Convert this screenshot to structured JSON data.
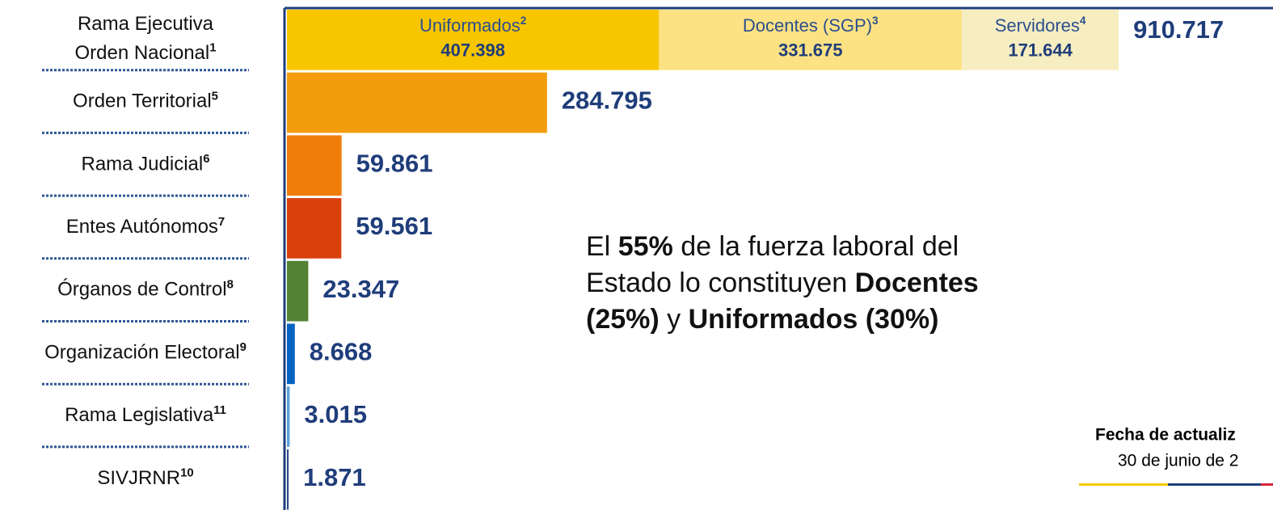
{
  "chart_data": {
    "type": "bar",
    "orientation": "horizontal",
    "categories": [
      {
        "lines": [
          "Rama Ejecutiva",
          "Orden Nacional"
        ],
        "note": "1"
      },
      {
        "lines": [
          "Orden Territorial"
        ],
        "note": "5"
      },
      {
        "lines": [
          "Rama Judicial"
        ],
        "note": "6"
      },
      {
        "lines": [
          "Entes Autónomos"
        ],
        "note": "7"
      },
      {
        "lines": [
          "Órganos de Control"
        ],
        "note": "8"
      },
      {
        "lines": [
          "Organización Electoral"
        ],
        "note": "9"
      },
      {
        "lines": [
          "Rama Legislativa"
        ],
        "note": "11"
      },
      {
        "lines": [
          "SIVJRNR"
        ],
        "note": "10"
      }
    ],
    "values": [
      910717,
      284795,
      59861,
      59561,
      23347,
      8668,
      3015,
      1871
    ],
    "value_labels": [
      "910.717",
      "284.795",
      "59.861",
      "59.561",
      "23.347",
      "8.668",
      "3.015",
      "1.871"
    ],
    "colors": [
      null,
      "#f39c0c",
      "#ef7d0a",
      "#d8400c",
      "#548235",
      "#0563c1",
      "#5ba3d9",
      "#2f4a8a"
    ],
    "segments": [
      {
        "name": "Uniformados",
        "note": "2",
        "value": 407398,
        "value_label": "407.398",
        "color": "#f8c600"
      },
      {
        "name": "Docentes (SGP)",
        "note": "3",
        "value": 331675,
        "value_label": "331.675",
        "color": "#fde283"
      },
      {
        "name": "Servidores",
        "note": "4",
        "value": 171644,
        "value_label": "171.644",
        "color": "#f6edc0"
      }
    ],
    "annotation": [
      [
        {
          "text": "El ",
          "bold": false
        },
        {
          "text": "55%",
          "bold": true
        },
        {
          "text": " de la fuerza laboral del",
          "bold": false
        }
      ],
      [
        {
          "text": "Estado lo constituyen ",
          "bold": false
        },
        {
          "text": "Docentes",
          "bold": true
        }
      ],
      [
        {
          "text": "(25%)",
          "bold": true
        },
        {
          "text": " y ",
          "bold": false
        },
        {
          "text": "Uniformados (30%)",
          "bold": true
        }
      ]
    ],
    "footer": {
      "title": "Fecha de actualiz",
      "date": "30 de junio de 2"
    }
  }
}
